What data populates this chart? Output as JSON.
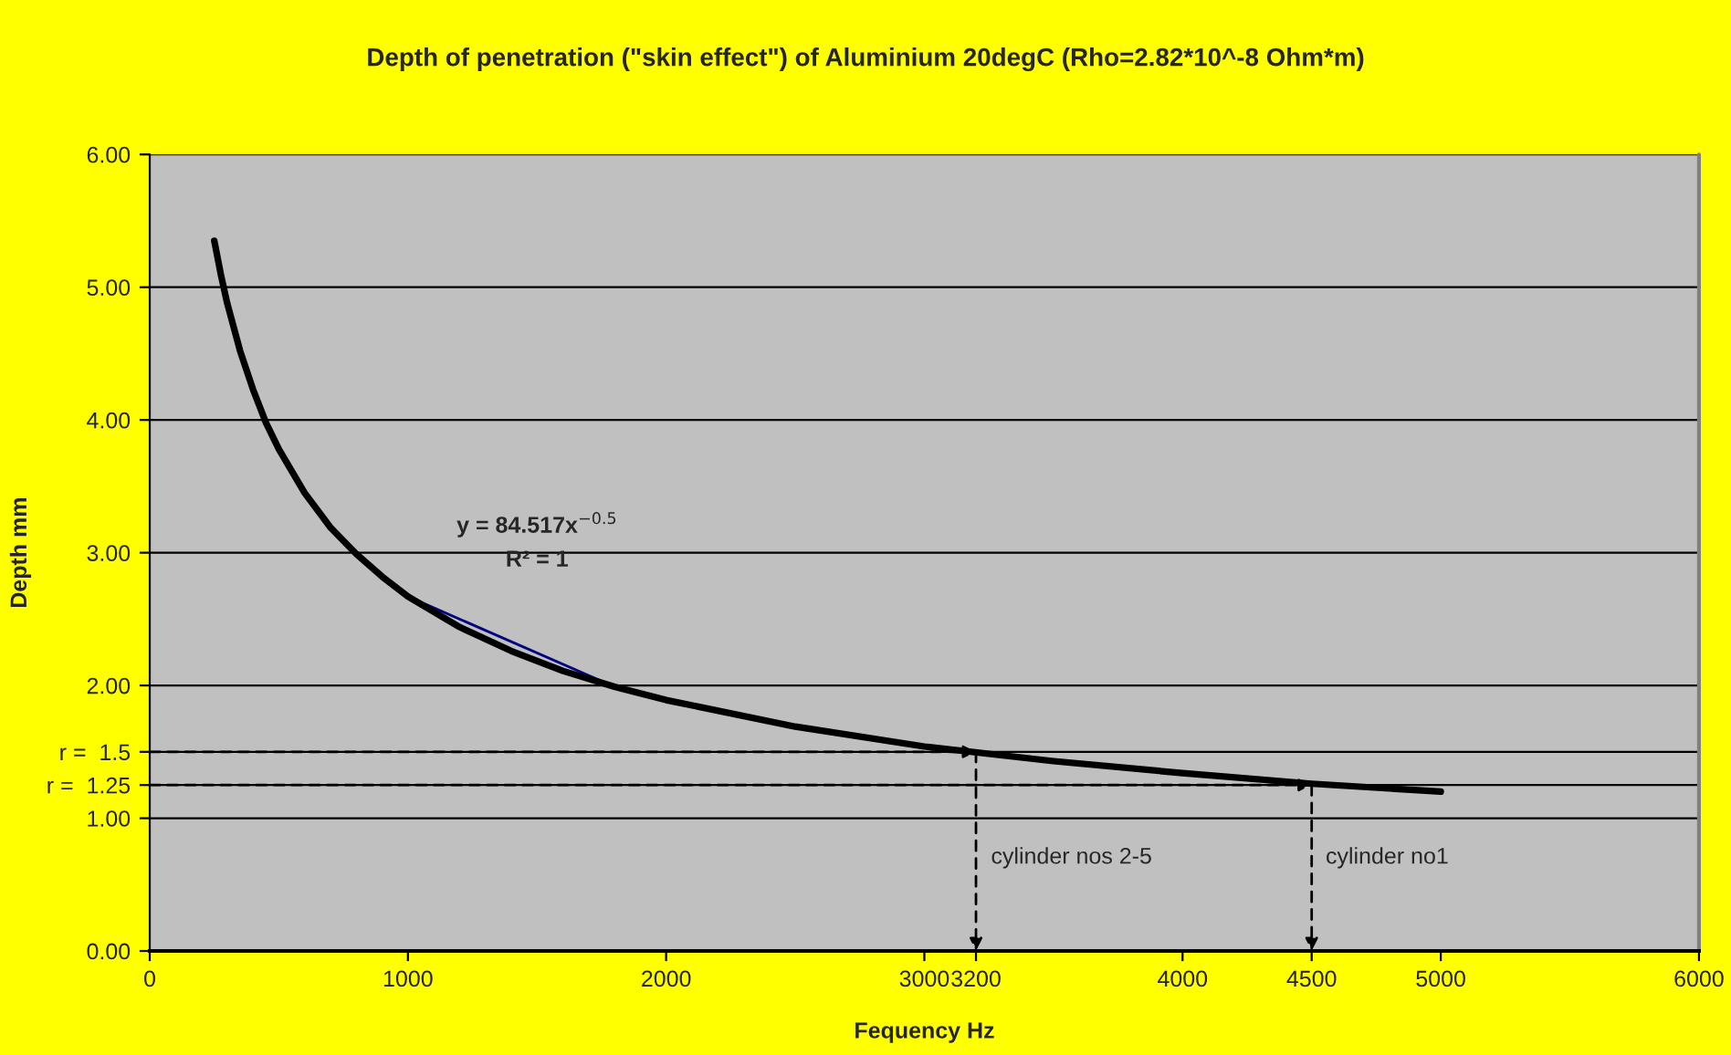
{
  "chart_data": {
    "type": "line",
    "title": "Depth of penetration (\"skin effect\") of Aluminium 20degC (Rho=2.82*10^-8 Ohm*m)",
    "xlabel": "Fequency Hz",
    "ylabel": "Depth mm",
    "xlim": [
      0,
      6000
    ],
    "xticks": [
      0,
      1000,
      2000,
      3000,
      3200,
      4000,
      4500,
      5000,
      6000
    ],
    "ylim": [
      0,
      6
    ],
    "yticks": [
      {
        "value": 0,
        "label": "0.00"
      },
      {
        "value": 1,
        "label": "1.00"
      },
      {
        "value": 1.25,
        "label": "r =  1.25"
      },
      {
        "value": 1.5,
        "label": "r =  1.5"
      },
      {
        "value": 2,
        "label": "2.00"
      },
      {
        "value": 3,
        "label": "3.00"
      },
      {
        "value": 4,
        "label": "4.00"
      },
      {
        "value": 5,
        "label": "5.00"
      },
      {
        "value": 6,
        "label": "6.00"
      }
    ],
    "grid": "y",
    "legend": false,
    "series": [
      {
        "color": "#000080",
        "x": [
          1000,
          1800
        ],
        "values": [
          2.67,
          1.99
        ]
      },
      {
        "color": "#000000",
        "x": [
          250,
          275,
          300,
          350,
          400,
          450,
          500,
          600,
          700,
          800,
          900,
          1000,
          1200,
          1400,
          1600,
          1800,
          2000,
          2500,
          3000,
          3500,
          4000,
          4500,
          5000
        ],
        "values": [
          5.35,
          5.1,
          4.88,
          4.52,
          4.23,
          3.98,
          3.78,
          3.45,
          3.19,
          2.99,
          2.82,
          2.67,
          2.44,
          2.26,
          2.11,
          1.99,
          1.89,
          1.69,
          1.54,
          1.43,
          1.34,
          1.26,
          1.2
        ]
      }
    ],
    "annotations": [
      "y = 84.517x$^{−0.5}$",
      "R² = 1",
      "cylinder nos 2-5",
      "cylinder no1"
    ]
  }
}
